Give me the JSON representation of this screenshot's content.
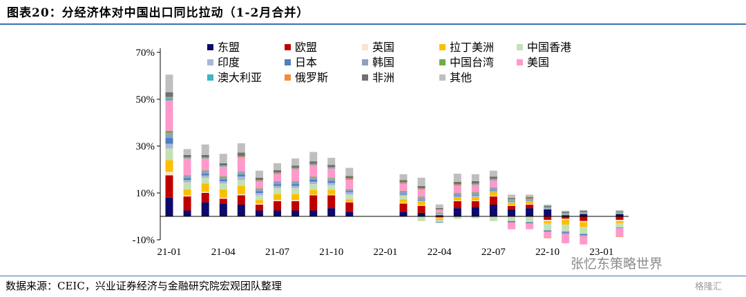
{
  "title": "图表20：分经济体对中国出口同比拉动（1-2月合并）",
  "source": "数据来源：CEIC，兴业证券经济与金融研究院宏观团队整理",
  "watermark": "张忆东策略世界",
  "brand": "格隆汇",
  "chart_data": {
    "type": "bar",
    "stacked": true,
    "ylim": [
      -12,
      73
    ],
    "yticks": [
      -10,
      10,
      30,
      50,
      70
    ],
    "ytick_labels": [
      "-10%",
      "10%",
      "30%",
      "50%",
      "70%"
    ],
    "ylabel": "",
    "xlabel": "",
    "grid": false,
    "legend_position": "top",
    "xtick_labels": [
      {
        "label": "21-01",
        "index": 0
      },
      {
        "label": "21-04",
        "index": 3
      },
      {
        "label": "21-07",
        "index": 6
      },
      {
        "label": "21-10",
        "index": 9
      },
      {
        "label": "22-01",
        "index": 12
      },
      {
        "label": "22-04",
        "index": 15
      },
      {
        "label": "22-07",
        "index": 18
      },
      {
        "label": "22-10",
        "index": 21
      },
      {
        "label": "23-01",
        "index": 24
      }
    ],
    "categories": [
      "21-01",
      "21-02",
      "21-03",
      "21-04",
      "21-05",
      "21-06",
      "21-07",
      "21-08",
      "21-09",
      "21-10",
      "21-11",
      "21-12",
      "22-01",
      "22-02",
      "22-03",
      "22-04",
      "22-05",
      "22-06",
      "22-07",
      "22-08",
      "22-09",
      "22-10",
      "22-11",
      "22-12",
      "23-01",
      "23-02"
    ],
    "series": [
      {
        "name": "东盟",
        "color": "#0d0a6b",
        "values": [
          8,
          2.5,
          6,
          5.5,
          5,
          2.5,
          2.5,
          2.5,
          2.5,
          3.5,
          2,
          null,
          null,
          2,
          1.5,
          0.5,
          3.5,
          4,
          5,
          3,
          3.5,
          3,
          0.5,
          1,
          null,
          1
        ]
      },
      {
        "name": "欧盟",
        "color": "#c00000",
        "values": [
          9.5,
          6,
          4,
          2,
          4,
          2.5,
          4,
          4,
          6.5,
          5.5,
          4,
          null,
          null,
          3.5,
          3,
          -0.5,
          3,
          2.5,
          3.5,
          1.5,
          1.5,
          -1.5,
          -1,
          -2,
          null,
          -1.5
        ]
      },
      {
        "name": "英国",
        "color": "#fde3d0",
        "values": [
          1.5,
          0.5,
          0.5,
          0.5,
          0.5,
          0.5,
          0.5,
          0.5,
          0.3,
          0.3,
          0.3,
          null,
          null,
          0.3,
          0.3,
          -0.3,
          0.3,
          0.3,
          0.3,
          0.3,
          0.3,
          -0.5,
          -0.5,
          -0.5,
          null,
          -0.5
        ]
      },
      {
        "name": "拉丁美洲",
        "color": "#fbbf00",
        "values": [
          5,
          2.5,
          3.5,
          3.5,
          3.5,
          1.5,
          2.5,
          2.5,
          2,
          2,
          1,
          null,
          null,
          1.5,
          1.5,
          -0.8,
          1.2,
          1.5,
          1.5,
          1,
          1,
          -1,
          -2,
          -2,
          null,
          -0.8
        ]
      },
      {
        "name": "中国香港",
        "color": "#c5e0b4",
        "values": [
          5,
          3,
          2.5,
          2.5,
          2.5,
          2,
          2.5,
          2.5,
          2.5,
          2,
          2,
          null,
          null,
          1.5,
          -2,
          -0.8,
          -1,
          -0.8,
          -2,
          -2,
          -2.5,
          -3,
          -3,
          -3,
          null,
          -2
        ]
      },
      {
        "name": "印度",
        "color": "#a9b7d9",
        "values": [
          2,
          1,
          1,
          1,
          1.5,
          1,
          1,
          1,
          1,
          1,
          1,
          null,
          null,
          0.5,
          0.5,
          0.5,
          0.5,
          0.5,
          0.5,
          0.3,
          0.3,
          0.3,
          0.3,
          0.3,
          null,
          0.3
        ]
      },
      {
        "name": "日本",
        "color": "#4e7fbf",
        "values": [
          2.5,
          0.8,
          0.8,
          0.8,
          0.8,
          0.8,
          0.8,
          0.8,
          0.8,
          0.8,
          0.5,
          null,
          null,
          0.3,
          0.3,
          -0.3,
          0.3,
          0.3,
          0.3,
          -0.5,
          -0.5,
          -0.5,
          -0.5,
          -0.5,
          null,
          -0.3
        ]
      },
      {
        "name": "韩国",
        "color": "#8ea1bd",
        "values": [
          2,
          1,
          1,
          1,
          1,
          0.8,
          1,
          1,
          1,
          1,
          0.5,
          null,
          null,
          1,
          1,
          0.5,
          1,
          1,
          1,
          0.5,
          0.5,
          0.3,
          -0.5,
          -0.5,
          null,
          0.3
        ]
      },
      {
        "name": "中国台湾",
        "color": "#70ad47",
        "values": [
          1,
          0.3,
          0.3,
          0.3,
          0.3,
          0.3,
          0.3,
          0.3,
          0.3,
          0.3,
          0.3,
          null,
          null,
          0.3,
          0.3,
          0.2,
          0.3,
          0.3,
          0.3,
          0.2,
          0.2,
          0.2,
          0.2,
          0.2,
          null,
          0.2
        ]
      },
      {
        "name": "美国",
        "color": "#ff99cc",
        "values": [
          13,
          7,
          5,
          4,
          6,
          3,
          3,
          5,
          5,
          4,
          4,
          null,
          null,
          3,
          3,
          1,
          3,
          3,
          3,
          -3,
          -2.5,
          -2.5,
          -4,
          -3.5,
          null,
          -3.5
        ]
      },
      {
        "name": "澳大利亚",
        "color": "#3fb4c8",
        "values": [
          1,
          0.3,
          0.3,
          0.3,
          0.3,
          0.3,
          0.3,
          0.3,
          0.3,
          0.3,
          0.3,
          null,
          null,
          0.3,
          0.3,
          0.2,
          0.3,
          0.3,
          0.3,
          0.2,
          0.2,
          0.2,
          0.2,
          0.2,
          null,
          0.2
        ]
      },
      {
        "name": "俄罗斯",
        "color": "#f08c3c",
        "values": [
          0.5,
          0.3,
          0.3,
          0.3,
          0.3,
          0.3,
          0.3,
          0.3,
          0.3,
          0.3,
          0.3,
          null,
          null,
          0.3,
          0.3,
          0.2,
          0.3,
          0.3,
          0.3,
          0.3,
          0.3,
          -0.3,
          0.2,
          0.2,
          null,
          -0.2
        ]
      },
      {
        "name": "非洲",
        "color": "#707070",
        "values": [
          2,
          1,
          1,
          1,
          1.5,
          1,
          1,
          1,
          1,
          1,
          1,
          null,
          null,
          1,
          1,
          0.5,
          1,
          1,
          1,
          0.5,
          0.5,
          0.5,
          0.5,
          0.5,
          null,
          0.3
        ]
      },
      {
        "name": "其他",
        "color": "#bfbfbf",
        "values": [
          7.5,
          2.5,
          4.5,
          4,
          4,
          3,
          3,
          3,
          4,
          3,
          3.5,
          null,
          null,
          2.5,
          3.5,
          1.5,
          3.5,
          3,
          2.5,
          1.5,
          1,
          0.5,
          0.5,
          0.3,
          null,
          0.3
        ]
      }
    ]
  }
}
